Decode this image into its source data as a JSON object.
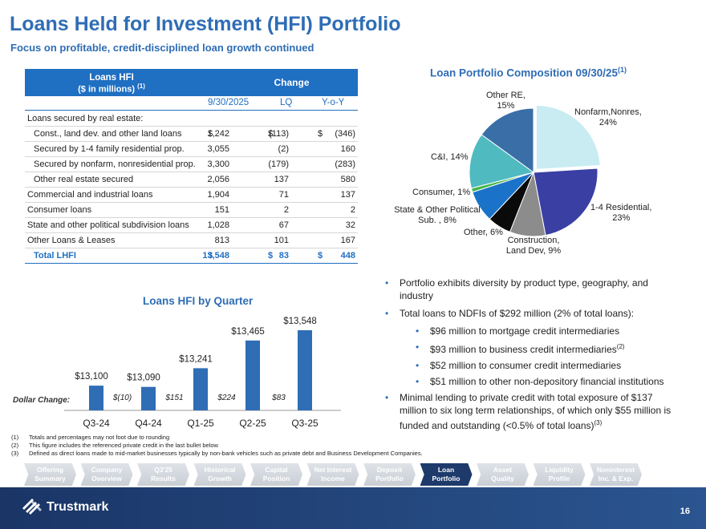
{
  "header": {
    "title": "Loans Held for Investment (HFI) Portfolio",
    "subtitle": "Focus on profitable, credit-disciplined loan growth continued"
  },
  "table": {
    "head_line1": "Loans HFI",
    "head_line2": "($ in millions)",
    "head_sup": "(1)",
    "change_label": "Change",
    "col_date": "9/30/2025",
    "col_lq": "LQ",
    "col_yoy": "Y-o-Y",
    "rows": [
      {
        "label": "Loans secured by real estate:",
        "v1": "",
        "v2": "",
        "v3": "",
        "d1": "",
        "d2": "",
        "d3": ""
      },
      {
        "label": "Const., land dev. and other land loans",
        "d1": "$",
        "v1": "1,242",
        "d2": "$",
        "v2": "(113)",
        "d3": "$",
        "v3": "(346)"
      },
      {
        "label": "Secured by 1-4 family residential prop.",
        "d1": "",
        "v1": "3,055",
        "d2": "",
        "v2": "(2)",
        "d3": "",
        "v3": "160"
      },
      {
        "label": "Secured by nonfarm, nonresidential prop.",
        "d1": "",
        "v1": "3,300",
        "d2": "",
        "v2": "(179)",
        "d3": "",
        "v3": "(283)"
      },
      {
        "label": "Other real estate secured",
        "d1": "",
        "v1": "2,056",
        "d2": "",
        "v2": "137",
        "d3": "",
        "v3": "580"
      },
      {
        "label": "Commercial and industrial loans",
        "d1": "",
        "v1": "1,904",
        "d2": "",
        "v2": "71",
        "d3": "",
        "v3": "137"
      },
      {
        "label": "Consumer loans",
        "d1": "",
        "v1": "151",
        "d2": "",
        "v2": "2",
        "d3": "",
        "v3": "2"
      },
      {
        "label": "State and other political subdivision loans",
        "d1": "",
        "v1": "1,028",
        "d2": "",
        "v2": "67",
        "d3": "",
        "v3": "32"
      },
      {
        "label": "Other Loans & Leases",
        "d1": "",
        "v1": "813",
        "d2": "",
        "v2": "101",
        "d3": "",
        "v3": "167"
      },
      {
        "label": "Total LHFI",
        "d1": "$",
        "v1": "13,548",
        "d2": "$",
        "v2": "83",
        "d3": "$",
        "v3": "448"
      }
    ]
  },
  "pie": {
    "title": "Loan Portfolio Composition 09/30/25",
    "title_sup": "(1)"
  },
  "bar": {
    "title": "Loans HFI by Quarter",
    "change_label": "Dollar Change:"
  },
  "chart_data": [
    {
      "type": "pie",
      "title": "Loan Portfolio Composition 09/30/25",
      "slices": [
        {
          "name": "Nonfarm,Nonres,",
          "label": "24%",
          "value": 24,
          "color": "#c9ecf3"
        },
        {
          "name": "1-4 Residential,",
          "label": "23%",
          "value": 23,
          "color": "#3a3fa4"
        },
        {
          "name": "Construction, Land Dev,",
          "label": "9%",
          "value": 9,
          "color": "#8c8c8c"
        },
        {
          "name": "Other,",
          "label": "6%",
          "value": 6,
          "color": "#0a0a0a"
        },
        {
          "name": "State & Other Political Sub. ,",
          "label": "8%",
          "value": 8,
          "color": "#1a73c9"
        },
        {
          "name": "Consumer,",
          "label": "1%",
          "value": 1,
          "color": "#43b54a"
        },
        {
          "name": "C&I,",
          "label": "14%",
          "value": 14,
          "color": "#4fbac0"
        },
        {
          "name": "Other RE,",
          "label": "15%",
          "value": 15,
          "color": "#3a6ea6"
        }
      ]
    },
    {
      "type": "bar",
      "title": "Loans HFI by Quarter",
      "categories": [
        "Q3-24",
        "Q4-24",
        "Q1-25",
        "Q2-25",
        "Q3-25"
      ],
      "values": [
        13100,
        13090,
        13241,
        13465,
        13548
      ],
      "value_labels": [
        "$13,100",
        "$13,090",
        "$13,241",
        "$13,465",
        "$13,548"
      ],
      "changes": [
        "",
        "$(10)",
        "$151",
        "$224",
        "$83"
      ],
      "ylim": [
        12900,
        13600
      ],
      "color": "#2f6db5"
    }
  ],
  "bullets": {
    "b1": "Portfolio exhibits diversity by product type, geography, and industry",
    "b2": "Total loans to NDFIs of $292 million (2% of total loans):",
    "s1": "$96 million to mortgage credit intermediaries",
    "s2": "$93 million to business credit intermediaries",
    "s2_sup": "(2)",
    "s3": "$52 million to consumer credit intermediaries",
    "s4": "$51 million to other non-depository financial institutions",
    "b3": "Minimal lending to private credit with total exposure of $137 million to six long term relationships, of which only $55 million is funded and outstanding (<0.5% of total loans)",
    "b3_sup": "(3)"
  },
  "footnotes": [
    {
      "n": "(1)",
      "text": "Totals and percentages may not foot due to rounding"
    },
    {
      "n": "(2)",
      "text": "This figure includes the referenced private credit in the last bullet below"
    },
    {
      "n": "(3)",
      "text": "Defined as direct loans made to mid-market businesses typically by non-bank vehicles such as private debt and Business Development Companies."
    }
  ],
  "nav": [
    {
      "l1": "Offering",
      "l2": "Summary"
    },
    {
      "l1": "Company",
      "l2": "Overview"
    },
    {
      "l1": "Q3'25",
      "l2": "Results"
    },
    {
      "l1": "Historical",
      "l2": "Growth"
    },
    {
      "l1": "Capital",
      "l2": "Position"
    },
    {
      "l1": "Net Interest",
      "l2": "Income"
    },
    {
      "l1": "Deposit",
      "l2": "Portfolio"
    },
    {
      "l1": "Loan",
      "l2": "Portfolio"
    },
    {
      "l1": "Asset",
      "l2": "Quality"
    },
    {
      "l1": "Liquidity",
      "l2": "Profile"
    },
    {
      "l1": "Noninterest",
      "l2": "Inc. & Exp."
    }
  ],
  "footer": {
    "brand": "Trustmark",
    "page": "16"
  }
}
